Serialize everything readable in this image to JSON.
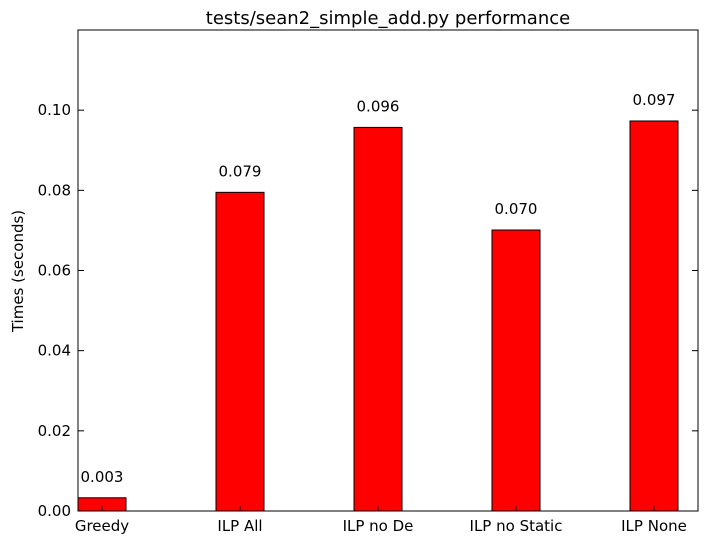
{
  "chart_data": {
    "type": "bar",
    "title": "tests/sean2_simple_add.py performance",
    "xlabel": "",
    "ylabel": "Times (seconds)",
    "categories": [
      "Greedy",
      "ILP All",
      "ILP no De",
      "ILP no Static",
      "ILP None"
    ],
    "values": [
      0.0033,
      0.0795,
      0.0957,
      0.0701,
      0.0973
    ],
    "value_labels": [
      "0.003",
      "0.079",
      "0.096",
      "0.070",
      "0.097"
    ],
    "ylim": [
      0,
      0.12
    ],
    "yticks": [
      0.0,
      0.02,
      0.04,
      0.06,
      0.08,
      0.1
    ],
    "ytick_labels": [
      "0.00",
      "0.02",
      "0.04",
      "0.06",
      "0.08",
      "0.10"
    ],
    "bar_color": "#ff0000",
    "grid": false
  }
}
